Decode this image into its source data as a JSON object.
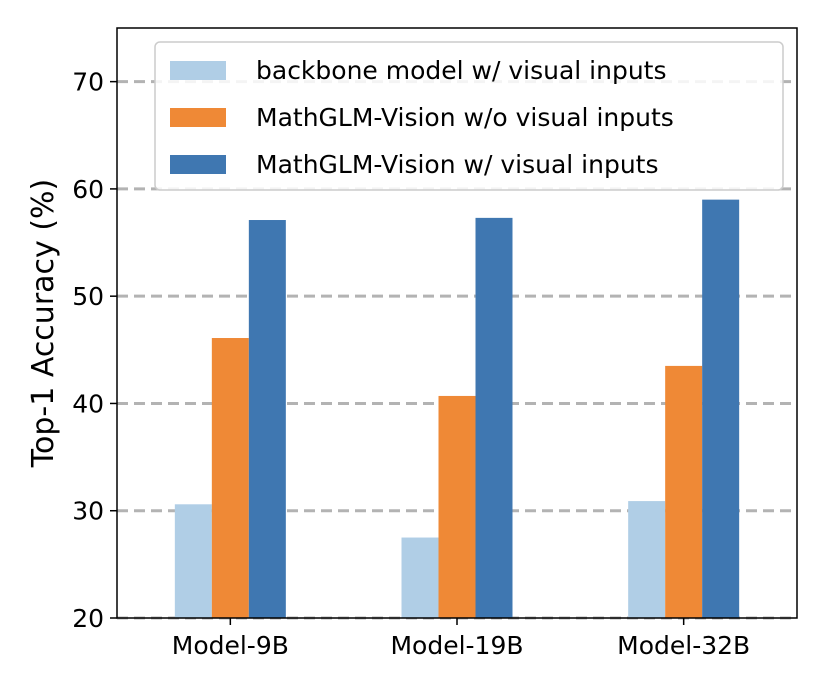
{
  "chart_data": {
    "type": "bar",
    "title": "",
    "xlabel": "",
    "ylabel": "Top-1 Accuracy (%)",
    "categories": [
      "Model-9B",
      "Model-19B",
      "Model-32B"
    ],
    "series": [
      {
        "name": "backbone model w/ visual inputs",
        "color": "#b0cee6",
        "values": [
          30.6,
          27.5,
          30.9
        ]
      },
      {
        "name": "MathGLM-Vision w/o visual inputs",
        "color": "#ef8936",
        "values": [
          46.1,
          40.7,
          43.5
        ]
      },
      {
        "name": "MathGLM-Vision w/ visual inputs",
        "color": "#3f77b1",
        "values": [
          57.1,
          57.3,
          59.0
        ]
      }
    ],
    "ylim": [
      20,
      75
    ],
    "yticks": [
      20,
      30,
      40,
      50,
      60,
      70
    ],
    "grid": true,
    "legend_position": "top-right"
  }
}
